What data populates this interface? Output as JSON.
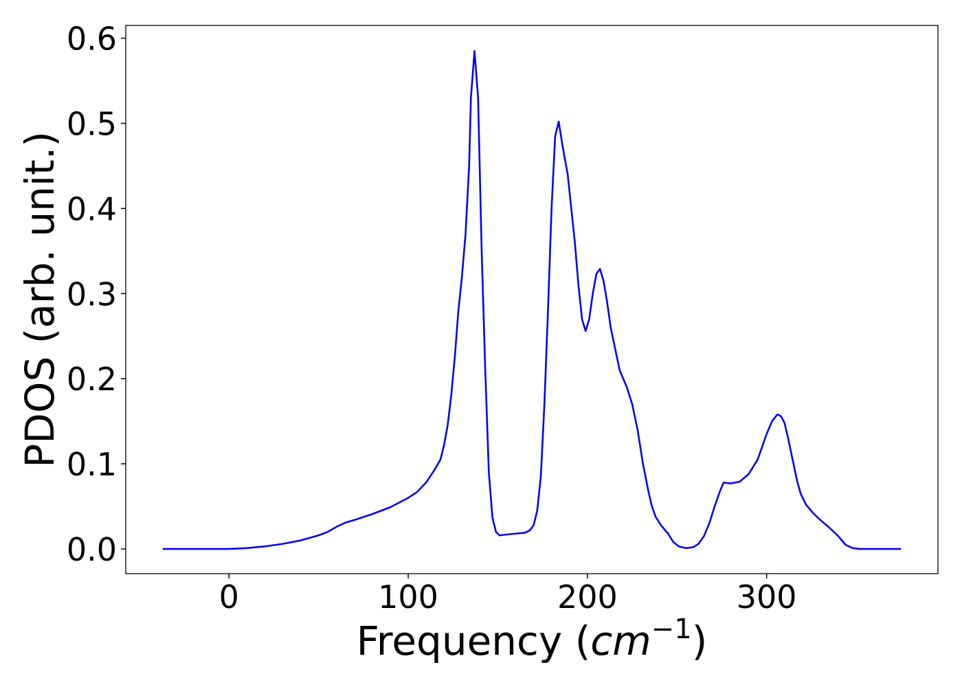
{
  "chart_data": {
    "type": "line",
    "ylabel": "PDOS (arb. unit.)",
    "xlabel_parts": [
      "Frequency (",
      "cm",
      "−1",
      ")"
    ],
    "xlim": [
      -57.6,
      395.6
    ],
    "ylim": [
      -0.029,
      0.615
    ],
    "xticks": [
      0,
      100,
      200,
      300
    ],
    "yticks": [
      {
        "value": 0,
        "label": "0.0"
      },
      0.1,
      0.2,
      0.3,
      0.4,
      0.5,
      0.6
    ],
    "x": [
      -37,
      0,
      10,
      20,
      30,
      40,
      50,
      55,
      60,
      65,
      70,
      80,
      90,
      100,
      105,
      110,
      115,
      118,
      120,
      122,
      124,
      126,
      128,
      130,
      132,
      134,
      135,
      137,
      139,
      141,
      143,
      145,
      147,
      149,
      151,
      155,
      160,
      165,
      168,
      170,
      172,
      174,
      176,
      178,
      180,
      182,
      184,
      186,
      189,
      191,
      193,
      195,
      197,
      199,
      201,
      203,
      205,
      207,
      209,
      211,
      213,
      216,
      218,
      222,
      225,
      228,
      231,
      234,
      236,
      238,
      241,
      245,
      248,
      251,
      255,
      259,
      262,
      265,
      268,
      271,
      274,
      276,
      280,
      285,
      290,
      295,
      300,
      303,
      306,
      308,
      310,
      312,
      315,
      317,
      319,
      322,
      326,
      330,
      335,
      340,
      344,
      348,
      352,
      375
    ],
    "series": [
      {
        "color": "#0000ff",
        "values": [
          0,
          0,
          0.001,
          0.003,
          0.006,
          0.01,
          0.016,
          0.02,
          0.026,
          0.031,
          0.034,
          0.041,
          0.049,
          0.06,
          0.067,
          0.078,
          0.094,
          0.105,
          0.122,
          0.145,
          0.18,
          0.225,
          0.28,
          0.32,
          0.37,
          0.45,
          0.53,
          0.585,
          0.53,
          0.35,
          0.21,
          0.09,
          0.037,
          0.02,
          0.016,
          0.017,
          0.018,
          0.019,
          0.022,
          0.028,
          0.045,
          0.085,
          0.17,
          0.28,
          0.4,
          0.485,
          0.502,
          0.475,
          0.44,
          0.4,
          0.36,
          0.31,
          0.27,
          0.256,
          0.27,
          0.3,
          0.323,
          0.329,
          0.315,
          0.29,
          0.26,
          0.23,
          0.21,
          0.19,
          0.17,
          0.14,
          0.1,
          0.068,
          0.05,
          0.038,
          0.028,
          0.018,
          0.008,
          0.003,
          0.001,
          0.002,
          0.006,
          0.015,
          0.03,
          0.05,
          0.068,
          0.078,
          0.077,
          0.079,
          0.088,
          0.105,
          0.135,
          0.15,
          0.158,
          0.156,
          0.148,
          0.13,
          0.1,
          0.08,
          0.065,
          0.052,
          0.042,
          0.034,
          0.025,
          0.015,
          0.005,
          0.001,
          0,
          0
        ]
      }
    ]
  }
}
